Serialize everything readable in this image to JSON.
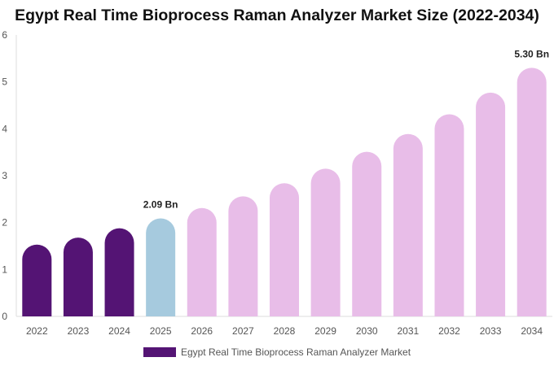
{
  "chart_data": {
    "type": "bar",
    "title": "Egypt Real Time Bioprocess Raman Analyzer Market Size (2022-2034)",
    "xlabel": "",
    "ylabel": "",
    "ylim": [
      0,
      6
    ],
    "yticks": [
      0,
      1,
      2,
      3,
      4,
      5,
      6
    ],
    "categories": [
      "2022",
      "2023",
      "2024",
      "2025",
      "2026",
      "2027",
      "2028",
      "2029",
      "2030",
      "2031",
      "2032",
      "2033",
      "2034"
    ],
    "series": [
      {
        "name": "Egypt Real Time Bioprocess Raman Analyzer Market",
        "values": [
          1.53,
          1.68,
          1.88,
          2.09,
          2.31,
          2.56,
          2.84,
          3.15,
          3.51,
          3.89,
          4.31,
          4.77,
          5.3
        ]
      }
    ],
    "data_labels": [
      {
        "category": "2025",
        "text": "2.09 Bn"
      },
      {
        "category": "2034",
        "text": "5.30 Bn"
      }
    ],
    "bar_colors": {
      "historical": "#541474",
      "current": "#a6cade",
      "forecast": "#e8bde8"
    },
    "grid": false,
    "legend_position": "bottom"
  }
}
